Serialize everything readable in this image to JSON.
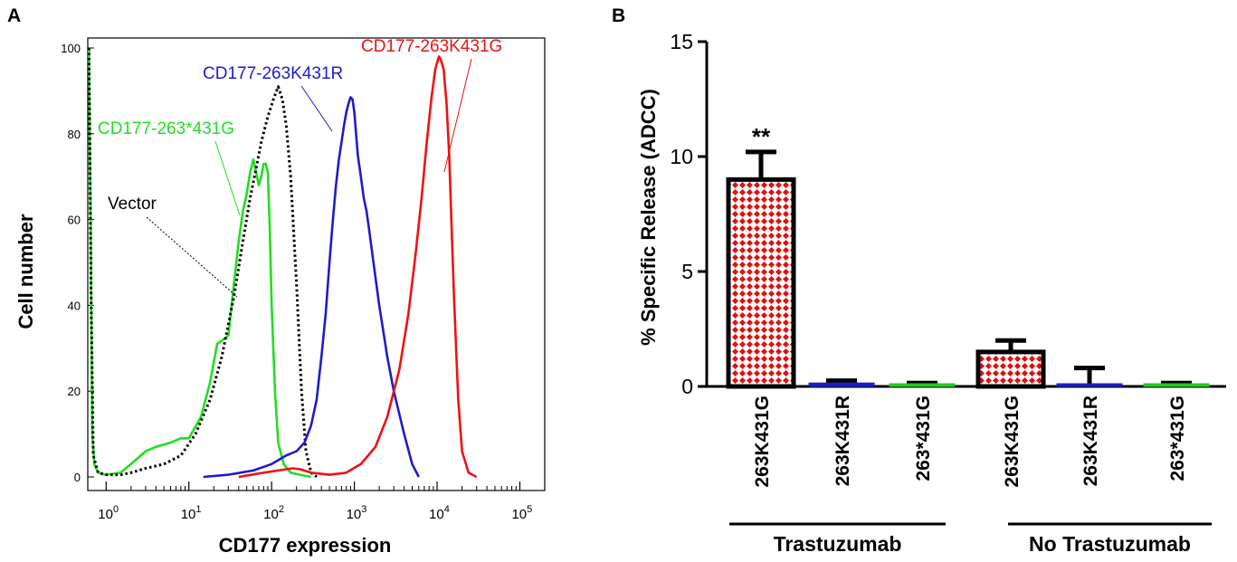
{
  "chart_data": [
    {
      "panel": "A",
      "type": "line",
      "xlabel": "CD177 expression",
      "ylabel": "Cell number",
      "xscale": "log",
      "xlim": [
        0.6,
        200000
      ],
      "ylim": [
        0,
        102
      ],
      "xticks": [
        {
          "base": "10",
          "exp": "0",
          "value": 1
        },
        {
          "base": "10",
          "exp": "1",
          "value": 10
        },
        {
          "base": "10",
          "exp": "2",
          "value": 100
        },
        {
          "base": "10",
          "exp": "3",
          "value": 1000
        },
        {
          "base": "10",
          "exp": "4",
          "value": 10000
        },
        {
          "base": "10",
          "exp": "5",
          "value": 100000
        }
      ],
      "yticks": [
        {
          "label": "0",
          "value": 0
        },
        {
          "label": "20",
          "value": 20
        },
        {
          "label": "40",
          "value": 40
        },
        {
          "label": "60",
          "value": 60
        },
        {
          "label": "80",
          "value": 80
        },
        {
          "label": "100",
          "value": 100
        }
      ],
      "series": [
        {
          "name": "CD177-263*431G",
          "color": "#22dd22",
          "dash": "solid",
          "x": [
            0.62,
            0.65,
            0.68,
            0.72,
            0.8,
            1,
            1.5,
            2,
            3,
            4,
            6,
            8,
            10,
            14,
            18,
            22,
            26,
            30,
            35,
            40,
            45,
            50,
            55,
            60,
            65,
            70,
            75,
            80,
            85,
            90,
            95,
            100,
            110,
            120,
            140,
            170,
            220,
            300
          ],
          "y": [
            100,
            60,
            10,
            3,
            1,
            0.5,
            1,
            3,
            6,
            7,
            8,
            9,
            9,
            14,
            22,
            31,
            32,
            33,
            45,
            55,
            62,
            66,
            71,
            74,
            71,
            68,
            70,
            73,
            73,
            71,
            58,
            40,
            20,
            8,
            3,
            1,
            0.5,
            0
          ]
        },
        {
          "name": "Vector",
          "color": "#000000",
          "dash": "dotted",
          "x": [
            0.62,
            0.66,
            0.7,
            0.8,
            1,
            1.5,
            2,
            3,
            5,
            8,
            12,
            18,
            25,
            35,
            45,
            55,
            65,
            75,
            90,
            105,
            120,
            135,
            150,
            170,
            200,
            230,
            260,
            300,
            350
          ],
          "y": [
            100,
            40,
            5,
            1,
            0.5,
            0.5,
            1,
            2,
            3,
            5,
            10,
            18,
            28,
            42,
            55,
            65,
            72,
            78,
            84,
            88,
            91,
            88,
            82,
            70,
            45,
            20,
            6,
            1,
            0
          ]
        },
        {
          "name": "CD177-263K431R",
          "color": "#1c1ccc",
          "dash": "solid",
          "x": [
            15,
            30,
            60,
            100,
            150,
            200,
            250,
            300,
            350,
            400,
            450,
            500,
            550,
            600,
            650,
            700,
            750,
            800,
            850,
            900,
            950,
            1000,
            1050,
            1100,
            1200,
            1300,
            1400,
            1500,
            1700,
            2000,
            2500,
            3000,
            4000,
            5000,
            6000
          ],
          "y": [
            0,
            0.5,
            1.5,
            3,
            5,
            6,
            8,
            12,
            18,
            28,
            38,
            50,
            60,
            68,
            74,
            78,
            82,
            85,
            87,
            88.5,
            88,
            85,
            80,
            75,
            70,
            65,
            62,
            58,
            50,
            40,
            28,
            20,
            10,
            3,
            0
          ]
        },
        {
          "name": "CD177-263K431G",
          "color": "#ee1111",
          "dash": "solid",
          "x": [
            40,
            80,
            120,
            180,
            220,
            300,
            500,
            800,
            1200,
            1800,
            2500,
            3500,
            4500,
            5500,
            6500,
            7500,
            8500,
            9500,
            10500,
            11000,
            12000,
            13000,
            14000,
            15000,
            16000,
            18000,
            20000,
            24000,
            30000
          ],
          "y": [
            0,
            1,
            1.5,
            2,
            1.8,
            1,
            0.5,
            1,
            3,
            7,
            14,
            25,
            38,
            52,
            65,
            78,
            88,
            95,
            98,
            97.5,
            95,
            87,
            75,
            58,
            42,
            18,
            6,
            1,
            0
          ]
        }
      ],
      "annotations": [
        {
          "text": "CD177-263K431G",
          "color": "#ee1111"
        },
        {
          "text": "CD177-263K431R",
          "color": "#1c1ccc"
        },
        {
          "text": "CD177-263*431G",
          "color": "#22dd22"
        },
        {
          "text": "Vector",
          "color": "#000000"
        }
      ]
    },
    {
      "panel": "B",
      "type": "bar",
      "ylabel": "% Specific Release (ADCC)",
      "ylim": [
        0,
        15
      ],
      "yticks": [
        {
          "label": "0",
          "value": 0
        },
        {
          "label": "5",
          "value": 5
        },
        {
          "label": "10",
          "value": 10
        },
        {
          "label": "15",
          "value": 15
        }
      ],
      "categories": [
        "263K431G",
        "263K431R",
        "263*431G",
        "263K431G",
        "263K431R",
        "263*431G"
      ],
      "values": [
        9.0,
        0.15,
        0.1,
        1.5,
        0.1,
        0.1
      ],
      "errors": [
        1.2,
        0.1,
        0.05,
        0.5,
        0.7,
        0.05
      ],
      "colors": [
        "checker",
        "#1c1ccc",
        "#22cc22",
        "checker",
        "#1c1ccc",
        "#22cc22"
      ],
      "significance": {
        "bar_index": 0,
        "text": "**"
      },
      "groups": [
        {
          "label": "Trastuzumab",
          "bar_indices": [
            0,
            1,
            2
          ]
        },
        {
          "label": "No Trastuzumab",
          "bar_indices": [
            3,
            4,
            5
          ]
        }
      ]
    }
  ]
}
